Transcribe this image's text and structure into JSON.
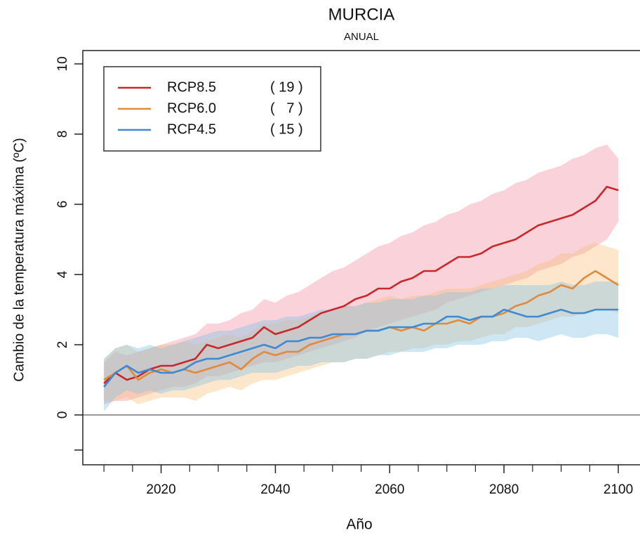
{
  "chart_data": {
    "type": "line_band",
    "title": "MURCIA",
    "subtitle": "ANUAL",
    "x_label": "Año",
    "y_label": "Cambio de la temperatura máxima (ºC)",
    "x": [
      2010,
      2012,
      2014,
      2016,
      2018,
      2020,
      2022,
      2024,
      2026,
      2028,
      2030,
      2032,
      2034,
      2036,
      2038,
      2040,
      2042,
      2044,
      2046,
      2048,
      2050,
      2052,
      2054,
      2056,
      2058,
      2060,
      2062,
      2064,
      2066,
      2068,
      2070,
      2072,
      2074,
      2076,
      2078,
      2080,
      2082,
      2084,
      2086,
      2088,
      2090,
      2092,
      2094,
      2096,
      2098,
      2100
    ],
    "xlim": [
      2006.3,
      2103.8
    ],
    "xticks": [
      2020,
      2040,
      2060,
      2080,
      2100
    ],
    "xminorticks": [
      2010,
      2015,
      2025,
      2030,
      2035,
      2045,
      2050,
      2055,
      2065,
      2070,
      2075,
      2085,
      2090,
      2095
    ],
    "ylim": [
      -1.42,
      10.38
    ],
    "yticks": [
      0,
      2,
      4,
      6,
      8,
      10
    ],
    "yminorticks": [
      -1
    ],
    "reference_line": 0,
    "series": [
      {
        "name": "RCP8.5",
        "legend_note": "( 19 )",
        "color": "#c8282a",
        "band_color": "rgba(240,140,155,0.38)",
        "values": [
          0.9,
          1.2,
          1.0,
          1.1,
          1.3,
          1.4,
          1.4,
          1.5,
          1.6,
          2.0,
          1.9,
          2.0,
          2.1,
          2.2,
          2.5,
          2.3,
          2.4,
          2.5,
          2.7,
          2.9,
          3.0,
          3.1,
          3.3,
          3.4,
          3.6,
          3.6,
          3.8,
          3.9,
          4.1,
          4.1,
          4.3,
          4.5,
          4.5,
          4.6,
          4.8,
          4.9,
          5.0,
          5.2,
          5.4,
          5.5,
          5.6,
          5.7,
          5.9,
          6.1,
          6.5,
          6.4
        ],
        "lower": [
          0.3,
          0.4,
          0.4,
          0.5,
          0.6,
          0.7,
          0.8,
          0.8,
          0.9,
          1.1,
          1.1,
          1.2,
          1.3,
          1.4,
          1.5,
          1.5,
          1.6,
          1.7,
          1.8,
          1.9,
          2.0,
          2.1,
          2.2,
          2.4,
          2.5,
          2.6,
          2.7,
          2.8,
          2.9,
          3.0,
          3.2,
          3.3,
          3.4,
          3.5,
          3.6,
          3.7,
          3.8,
          3.9,
          4.1,
          4.2,
          4.3,
          4.5,
          4.6,
          4.8,
          5.0,
          5.5
        ],
        "upper": [
          1.5,
          1.8,
          1.7,
          1.8,
          1.9,
          2.0,
          2.1,
          2.2,
          2.3,
          2.6,
          2.6,
          2.7,
          2.9,
          3.0,
          3.3,
          3.2,
          3.4,
          3.5,
          3.7,
          3.9,
          4.1,
          4.2,
          4.4,
          4.6,
          4.8,
          4.9,
          5.1,
          5.2,
          5.4,
          5.5,
          5.7,
          5.8,
          6.0,
          6.1,
          6.3,
          6.4,
          6.6,
          6.7,
          6.9,
          7.0,
          7.1,
          7.3,
          7.4,
          7.6,
          7.7,
          7.3
        ]
      },
      {
        "name": "RCP6.0",
        "legend_note": "(   7 )",
        "color": "#e08a3c",
        "band_color": "rgba(250,185,110,0.35)",
        "values": [
          1.0,
          1.2,
          1.4,
          1.0,
          1.2,
          1.3,
          1.2,
          1.3,
          1.2,
          1.3,
          1.4,
          1.5,
          1.3,
          1.6,
          1.8,
          1.7,
          1.8,
          1.8,
          2.0,
          2.1,
          2.2,
          2.3,
          2.3,
          2.4,
          2.4,
          2.5,
          2.4,
          2.5,
          2.4,
          2.6,
          2.6,
          2.7,
          2.6,
          2.8,
          2.8,
          2.9,
          3.1,
          3.2,
          3.4,
          3.5,
          3.7,
          3.6,
          3.9,
          4.1,
          3.9,
          3.7
        ],
        "lower": [
          0.4,
          0.4,
          0.5,
          0.3,
          0.4,
          0.5,
          0.5,
          0.5,
          0.4,
          0.6,
          0.7,
          0.8,
          0.7,
          0.9,
          1.0,
          1.0,
          1.1,
          1.2,
          1.3,
          1.4,
          1.5,
          1.5,
          1.6,
          1.6,
          1.7,
          1.8,
          1.8,
          1.9,
          1.9,
          2.0,
          2.0,
          2.1,
          2.1,
          2.2,
          2.3,
          2.3,
          2.5,
          2.5,
          2.6,
          2.7,
          2.8,
          2.8,
          2.9,
          3.0,
          3.0,
          2.9
        ],
        "upper": [
          1.6,
          1.9,
          2.0,
          1.8,
          1.9,
          2.0,
          2.0,
          2.1,
          2.0,
          2.1,
          2.2,
          2.3,
          2.2,
          2.4,
          2.6,
          2.6,
          2.7,
          2.7,
          2.8,
          2.9,
          3.0,
          3.1,
          3.1,
          3.2,
          3.3,
          3.4,
          3.3,
          3.4,
          3.4,
          3.5,
          3.6,
          3.6,
          3.6,
          3.7,
          3.8,
          3.9,
          4.0,
          4.1,
          4.3,
          4.4,
          4.6,
          4.6,
          4.8,
          4.9,
          4.8,
          4.7
        ]
      },
      {
        "name": "RCP4.5",
        "legend_note": "( 15 )",
        "color": "#3a8ad6",
        "band_color": "rgba(130,195,230,0.4)",
        "values": [
          0.8,
          1.2,
          1.4,
          1.2,
          1.3,
          1.2,
          1.2,
          1.3,
          1.5,
          1.6,
          1.6,
          1.7,
          1.8,
          1.9,
          2.0,
          1.9,
          2.1,
          2.1,
          2.2,
          2.2,
          2.3,
          2.3,
          2.3,
          2.4,
          2.4,
          2.5,
          2.5,
          2.5,
          2.6,
          2.6,
          2.8,
          2.8,
          2.7,
          2.8,
          2.8,
          3.0,
          2.9,
          2.8,
          2.8,
          2.9,
          3.0,
          2.9,
          2.9,
          3.0,
          3.0,
          3.0
        ],
        "lower": [
          0.1,
          0.5,
          0.7,
          0.6,
          0.7,
          0.6,
          0.7,
          0.7,
          0.8,
          0.9,
          1.0,
          1.0,
          1.1,
          1.2,
          1.2,
          1.2,
          1.3,
          1.4,
          1.4,
          1.5,
          1.5,
          1.5,
          1.6,
          1.6,
          1.7,
          1.7,
          1.8,
          1.8,
          1.8,
          1.9,
          1.9,
          2.0,
          2.0,
          2.0,
          2.1,
          2.1,
          2.2,
          2.2,
          2.1,
          2.2,
          2.3,
          2.2,
          2.2,
          2.3,
          2.3,
          2.2
        ],
        "upper": [
          1.6,
          1.9,
          2.0,
          1.9,
          2.0,
          1.9,
          2.0,
          2.1,
          2.2,
          2.3,
          2.4,
          2.4,
          2.5,
          2.6,
          2.7,
          2.7,
          2.8,
          2.8,
          2.9,
          3.0,
          3.0,
          3.1,
          3.1,
          3.2,
          3.2,
          3.3,
          3.3,
          3.3,
          3.4,
          3.4,
          3.5,
          3.5,
          3.5,
          3.6,
          3.6,
          3.7,
          3.7,
          3.7,
          3.7,
          3.7,
          3.8,
          3.7,
          3.7,
          3.8,
          3.8,
          3.8
        ]
      }
    ]
  }
}
